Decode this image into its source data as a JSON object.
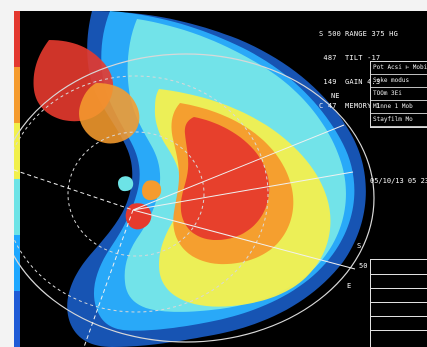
{
  "readouts": {
    "left": [
      {
        "label": "S",
        "value": "500"
      },
      {
        "label": "",
        "value": "487"
      },
      {
        "label": "",
        "value": "149"
      },
      {
        "label": "C",
        "value": "47"
      }
    ],
    "right": [
      {
        "name": "RANGE",
        "value": "375 HG"
      },
      {
        "name": "TILT",
        "value": "-17"
      },
      {
        "name": "GAIN",
        "value": "4.3"
      },
      {
        "name": "MEMORY",
        "value": "1"
      }
    ]
  },
  "status_panel": {
    "items": [
      "Pot Acsi  ⊢ Mobi",
      "Soke modus",
      "TOOm 3Ei",
      "Minne    1 Mob",
      "Stayfilm    Mo"
    ]
  },
  "timestamp": "05/10/13 05 23",
  "markers": {
    "ne": "NE",
    "s": "S",
    "e": "E",
    "fifty": "50"
  },
  "colors": {
    "screen_bg": "#000000",
    "range_rings": "#d8d8d8",
    "echo_palette": [
      "#1f5bd6",
      "#1ea7ff",
      "#6de3e6",
      "#f1f04b",
      "#f59b2e",
      "#e4372b"
    ]
  }
}
